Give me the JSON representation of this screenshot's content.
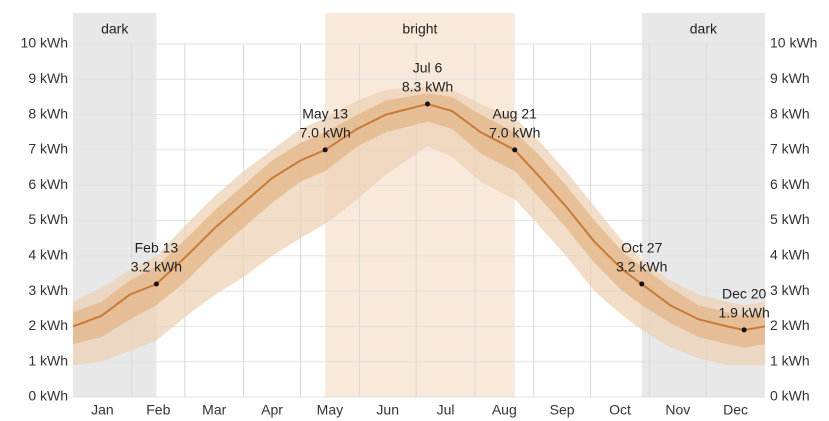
{
  "chart_data": {
    "type": "line",
    "xlim": [
      0,
      365
    ],
    "xticks": [
      {
        "value": 15.5,
        "label": "Jan"
      },
      {
        "value": 45,
        "label": "Feb"
      },
      {
        "value": 74.5,
        "label": "Mar"
      },
      {
        "value": 105,
        "label": "Apr"
      },
      {
        "value": 135.5,
        "label": "May"
      },
      {
        "value": 166,
        "label": "Jun"
      },
      {
        "value": 196.5,
        "label": "Jul"
      },
      {
        "value": 227.5,
        "label": "Aug"
      },
      {
        "value": 258,
        "label": "Sep"
      },
      {
        "value": 288.5,
        "label": "Oct"
      },
      {
        "value": 319,
        "label": "Nov"
      },
      {
        "value": 349.5,
        "label": "Dec"
      }
    ],
    "xgrid": [
      31,
      59,
      90,
      120,
      151,
      181,
      212,
      243,
      273,
      304,
      334
    ],
    "ylim": [
      0,
      10
    ],
    "yticks": [
      {
        "value": 0,
        "label": "0 kWh"
      },
      {
        "value": 1,
        "label": "1 kWh"
      },
      {
        "value": 2,
        "label": "2 kWh"
      },
      {
        "value": 3,
        "label": "3 kWh"
      },
      {
        "value": 4,
        "label": "4 kWh"
      },
      {
        "value": 5,
        "label": "5 kWh"
      },
      {
        "value": 6,
        "label": "6 kWh"
      },
      {
        "value": 7,
        "label": "7 kWh"
      },
      {
        "value": 8,
        "label": "8 kWh"
      },
      {
        "value": 9,
        "label": "9 kWh"
      },
      {
        "value": 10,
        "label": "10 kWh"
      }
    ],
    "grid": true,
    "regions": [
      {
        "label": "dark",
        "start": 0,
        "end": 44,
        "color": "#e8e8e8"
      },
      {
        "label": "bright",
        "start": 133,
        "end": 233,
        "color": "#f8e9da"
      },
      {
        "label": "dark",
        "start": 300,
        "end": 365,
        "color": "#e8e8e8"
      }
    ],
    "x": [
      0,
      15,
      30,
      44,
      60,
      75,
      90,
      105,
      120,
      133,
      150,
      165,
      187,
      200,
      215,
      233,
      245,
      260,
      275,
      290,
      300,
      315,
      330,
      345,
      354,
      365
    ],
    "bands": [
      {
        "color": "#ecd2b6",
        "low": [
          0.9,
          1.0,
          1.3,
          1.6,
          2.3,
          2.9,
          3.4,
          4.0,
          4.5,
          4.9,
          5.6,
          6.3,
          7.1,
          6.8,
          6.1,
          5.6,
          4.9,
          4.0,
          3.0,
          2.3,
          1.9,
          1.4,
          1.1,
          0.9,
          0.9,
          0.9
        ],
        "high": [
          2.7,
          3.1,
          3.6,
          4.0,
          4.9,
          5.7,
          6.4,
          7.0,
          7.6,
          7.9,
          8.4,
          8.7,
          8.8,
          8.7,
          8.3,
          7.9,
          7.3,
          6.4,
          5.4,
          4.4,
          3.9,
          3.3,
          2.9,
          2.7,
          2.6,
          2.7
        ]
      },
      {
        "color": "#e3b588",
        "low": [
          1.5,
          1.7,
          2.2,
          2.6,
          3.3,
          4.1,
          4.8,
          5.5,
          6.1,
          6.4,
          7.1,
          7.5,
          7.8,
          7.6,
          6.9,
          6.4,
          5.7,
          4.8,
          3.8,
          3.0,
          2.6,
          2.1,
          1.7,
          1.5,
          1.4,
          1.5
        ],
        "high": [
          2.4,
          2.7,
          3.3,
          3.7,
          4.5,
          5.3,
          6.0,
          6.7,
          7.2,
          7.5,
          8.0,
          8.4,
          8.6,
          8.5,
          8.0,
          7.5,
          6.9,
          6.0,
          5.0,
          4.1,
          3.7,
          3.1,
          2.6,
          2.4,
          2.3,
          2.4
        ]
      }
    ],
    "series": [
      {
        "color": "#c97a37",
        "values": [
          2.0,
          2.3,
          2.9,
          3.2,
          4.0,
          4.8,
          5.5,
          6.2,
          6.7,
          7.0,
          7.6,
          8.0,
          8.3,
          8.1,
          7.5,
          7.0,
          6.3,
          5.4,
          4.4,
          3.6,
          3.2,
          2.6,
          2.2,
          2.0,
          1.9,
          2.0
        ]
      }
    ],
    "annotations": [
      {
        "x": 44,
        "value": 3.2,
        "date": "Feb 13",
        "value_label": "3.2 kWh"
      },
      {
        "x": 133,
        "value": 7.0,
        "date": "May 13",
        "value_label": "7.0 kWh"
      },
      {
        "x": 187,
        "value": 8.3,
        "date": "Jul 6",
        "value_label": "8.3 kWh"
      },
      {
        "x": 233,
        "value": 7.0,
        "date": "Aug 21",
        "value_label": "7.0 kWh"
      },
      {
        "x": 300,
        "value": 3.2,
        "date": "Oct 27",
        "value_label": "3.2 kWh"
      },
      {
        "x": 354,
        "value": 1.9,
        "date": "Dec 20",
        "value_label": "1.9 kWh"
      }
    ]
  }
}
